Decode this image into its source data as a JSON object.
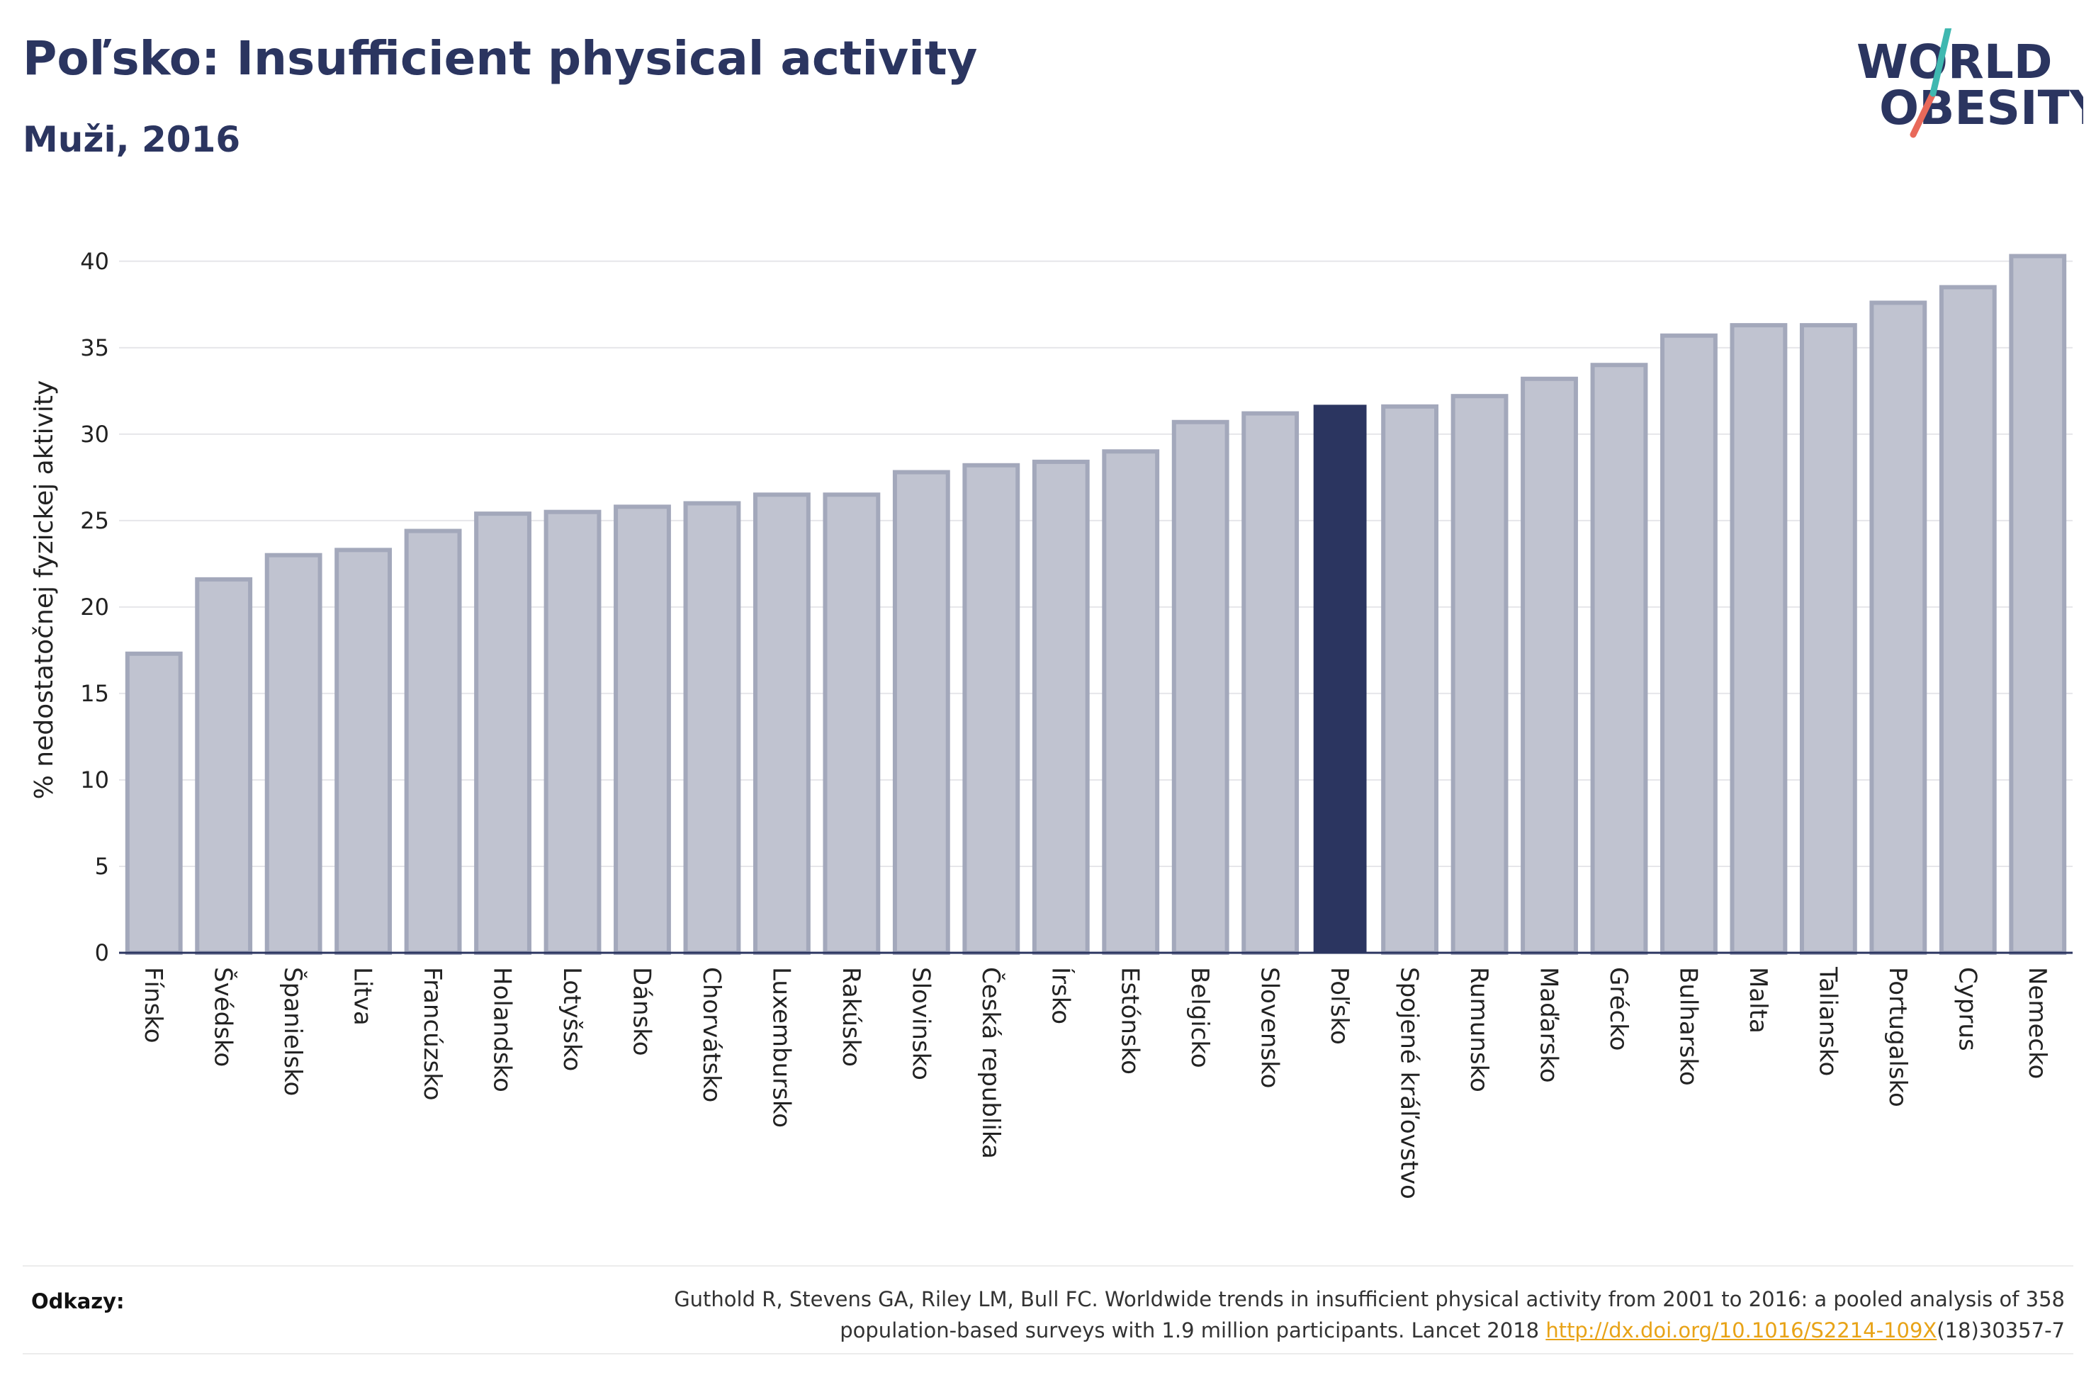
{
  "header": {
    "title": "Poľsko: Insufficient physical activity",
    "subtitle": "Muži, 2016"
  },
  "logo": {
    "line1": "WORLD",
    "line2": "OBESITY",
    "text_color": "#2b3560",
    "slash_top_color": "#3fb8b0",
    "slash_bottom_color": "#e8695a"
  },
  "chart_data": {
    "type": "bar",
    "ylabel": "% nedostatočnej fyzickej aktivity",
    "xlabel": "",
    "ylim": [
      0,
      42
    ],
    "yticks": [
      0,
      5,
      10,
      15,
      20,
      25,
      30,
      35,
      40
    ],
    "grid": true,
    "categories": [
      "Fínsko",
      "Švédsko",
      "Španielsko",
      "Litva",
      "Francúzsko",
      "Holandsko",
      "Lotyšsko",
      "Dánsko",
      "Chorvátsko",
      "Luxembursko",
      "Rakúsko",
      "Slovinsko",
      "Česká republika",
      "Írsko",
      "Estónsko",
      "Belgicko",
      "Slovensko",
      "Poľsko",
      "Spojené kráľovstvo",
      "Rumunsko",
      "Maďarsko",
      "Grécko",
      "Bulharsko",
      "Malta",
      "Taliansko",
      "Portugalsko",
      "Cyprus",
      "Nemecko"
    ],
    "values": [
      17.3,
      21.6,
      23.0,
      23.3,
      24.4,
      25.4,
      25.5,
      25.8,
      26.0,
      26.5,
      26.5,
      27.8,
      28.2,
      28.4,
      29.0,
      30.7,
      31.2,
      31.7,
      31.6,
      32.2,
      33.2,
      34.0,
      35.7,
      36.3,
      36.3,
      37.6,
      38.5,
      40.3
    ],
    "highlight": "Poľsko",
    "bar_color": "#c0c3d0",
    "bar_border_color": "#a3a8bb",
    "highlight_color": "#2b3560"
  },
  "footer": {
    "refs_label": "Odkazy:",
    "refs_text_1": "Guthold R, Stevens GA, Riley LM, Bull FC. Worldwide trends in insufficient physical activity from 2001 to 2016: a pooled analysis of 358",
    "refs_text_2": "population-based surveys with 1.9 million participants. Lancet 2018 ",
    "refs_link": "http://dx.doi.org/10.1016/S2214-109X",
    "refs_text_3": "(18)30357-7"
  }
}
